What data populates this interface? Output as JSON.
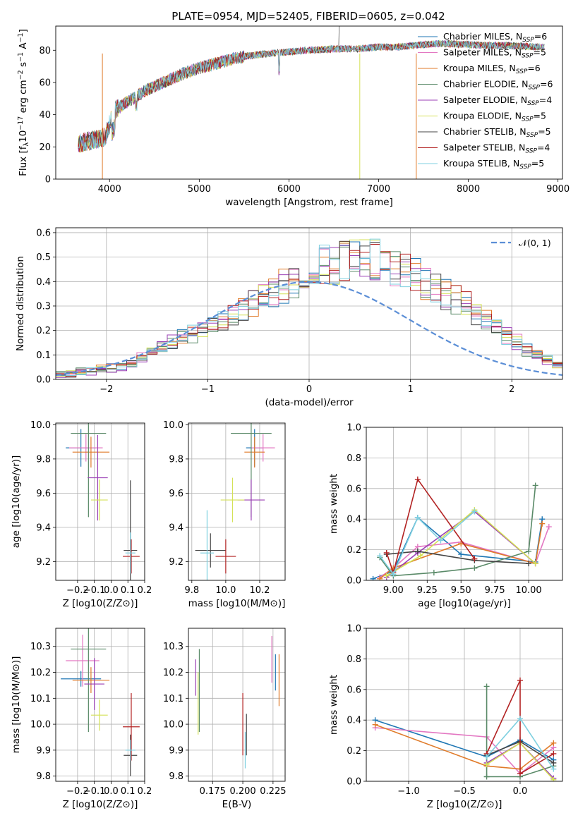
{
  "title": "PLATE=0954, MJD=52405, FIBERID=0605, z=0.042",
  "colors": {
    "chabrier_miles": "#1f77b4",
    "salpeter_miles": "#e377c2",
    "kroupa_miles": "#e07b2a",
    "chabrier_elodie": "#5a8a68",
    "salpeter_elodie": "#9b3fb5",
    "kroupa_elodie": "#d4e157",
    "chabrier_stelib": "#444444",
    "salpeter_stelib": "#b22222",
    "kroupa_stelib": "#7fd0e0",
    "normal": "#5b8ed6"
  },
  "chart_data": [
    {
      "type": "line",
      "panel": "spectrum",
      "title": "PLATE=0954, MJD=52405, FIBERID=0605, z=0.042",
      "xlabel": "wavelength [Angstrom, rest frame]",
      "ylabel": "Flux [f_λ 10^-17 erg cm^-2 s^-1 A^-1]",
      "xlim": [
        3400,
        9050
      ],
      "ylim": [
        0,
        95
      ],
      "xticks": [
        4000,
        5000,
        6000,
        7000,
        8000,
        9000
      ],
      "yticks": [
        0,
        20,
        40,
        60,
        80
      ],
      "legend_loc": "upper right",
      "legend": [
        "Chabrier MILES, N_SSP=6",
        "Salpeter MILES, N_SSP=5",
        "Kroupa MILES, N_SSP=6",
        "Chabrier ELODIE, N_SSP=6",
        "Salpeter ELODIE, N_SSP=4",
        "Kroupa ELODIE, N_SSP=5",
        "Chabrier STELIB, N_SSP=5",
        "Salpeter STELIB, N_SSP=4",
        "Kroupa STELIB, N_SSP=5"
      ],
      "continuum": {
        "x": [
          3650,
          3800,
          3950,
          4050,
          4200,
          4400,
          4600,
          4800,
          5000,
          5200,
          5400,
          5600,
          5800,
          6000,
          6200,
          6400,
          6600,
          6800,
          7000,
          7200,
          7400,
          7600,
          7800,
          8000,
          8200,
          8400,
          8600,
          8800
        ],
        "y": [
          22,
          24,
          26,
          42,
          48,
          55,
          60,
          65,
          69,
          72,
          75,
          77,
          78,
          79,
          80,
          80.5,
          81,
          81,
          82,
          82,
          83,
          84,
          84,
          83.5,
          83,
          83,
          82.5,
          82
        ]
      },
      "drops": [
        {
          "x": 3920,
          "model": "Kroupa MILES"
        },
        {
          "x": 6790,
          "model": "Kroupa ELODIE"
        },
        {
          "x": 7420,
          "model": "Kroupa MILES"
        }
      ],
      "spike": {
        "x": 6560,
        "y": 96
      }
    },
    {
      "type": "line",
      "panel": "residual_histogram",
      "xlabel": "(data-model)/error",
      "ylabel": "Normed distribution",
      "xlim": [
        -2.5,
        2.5
      ],
      "ylim": [
        0,
        0.62
      ],
      "xticks": [
        -2,
        -1,
        0,
        1,
        2
      ],
      "xtick_labels": [
        "−2",
        "−1",
        "0",
        "1",
        "2"
      ],
      "yticks": [
        0,
        0.1,
        0.2,
        0.3,
        0.4,
        0.5,
        0.6
      ],
      "ytick_labels": [
        "0.0",
        "0.1",
        "0.2",
        "0.3",
        "0.4",
        "0.5",
        "0.6"
      ],
      "legend_label": "𝒩(0, 1)",
      "legend_loc": "upper right",
      "bin_width": 0.1,
      "histogram_envelope": [
        0.02,
        0.025,
        0.03,
        0.035,
        0.04,
        0.05,
        0.06,
        0.07,
        0.09,
        0.11,
        0.13,
        0.15,
        0.17,
        0.19,
        0.21,
        0.23,
        0.25,
        0.27,
        0.29,
        0.31,
        0.33,
        0.36,
        0.38,
        0.4,
        0.42,
        0.44,
        0.46,
        0.47,
        0.48,
        0.49,
        0.5,
        0.49,
        0.48,
        0.46,
        0.44,
        0.42,
        0.39,
        0.37,
        0.35,
        0.33,
        0.3,
        0.27,
        0.24,
        0.21,
        0.18,
        0.15,
        0.12,
        0.1,
        0.08,
        0.06
      ]
    },
    {
      "type": "scatter",
      "panel": "age_vs_Z",
      "xlabel": "Z [log10(Z/Z⊙)]",
      "ylabel": "age [log10(age/yr)]",
      "xlim": [
        -0.33,
        0.2
      ],
      "ylim": [
        9.09,
        10.01
      ],
      "xticks": [
        -0.2,
        -0.1,
        0.0,
        0.1,
        0.2
      ],
      "xtick_labels": [
        "−0.2",
        "−0.1",
        "0.0",
        "0.1",
        "0.2"
      ],
      "yticks": [
        9.2,
        9.4,
        9.6,
        9.8,
        10.0
      ],
      "ytick_labels": [
        "9.2",
        "9.4",
        "9.6",
        "9.8",
        "10.0"
      ],
      "points": [
        {
          "model": "Chabrier MILES",
          "x": -0.18,
          "xerr": 0.09,
          "y": 9.865,
          "yerr": 0.11
        },
        {
          "model": "Salpeter MILES",
          "x": -0.15,
          "xerr": 0.1,
          "y": 9.865,
          "yerr": 0.08
        },
        {
          "model": "Kroupa MILES",
          "x": -0.12,
          "xerr": 0.11,
          "y": 9.84,
          "yerr": 0.09
        },
        {
          "model": "Chabrier ELODIE",
          "x": -0.135,
          "xerr": 0.105,
          "y": 9.95,
          "yerr": 0.49
        },
        {
          "model": "Salpeter ELODIE",
          "x": -0.08,
          "xerr": 0.06,
          "y": 9.69,
          "yerr": 0.25
        },
        {
          "model": "Kroupa ELODIE",
          "x": -0.07,
          "xerr": 0.05,
          "y": 9.56,
          "yerr": 0.12
        },
        {
          "model": "Chabrier STELIB",
          "x": 0.115,
          "xerr": 0.04,
          "y": 9.265,
          "yerr": 0.41
        },
        {
          "model": "Salpeter STELIB",
          "x": 0.12,
          "xerr": 0.05,
          "y": 9.23,
          "yerr": 0.1
        },
        {
          "model": "Kroupa STELIB",
          "x": 0.115,
          "xerr": 0.03,
          "y": 9.25,
          "yerr": 0.12
        }
      ]
    },
    {
      "type": "scatter",
      "panel": "age_vs_mass",
      "xlabel": "mass [log10(M/M⊙)]",
      "xlim": [
        9.78,
        10.35
      ],
      "ylim": [
        9.09,
        10.01
      ],
      "xticks": [
        9.8,
        10.0,
        10.2
      ],
      "xtick_labels": [
        "9.8",
        "10.0",
        "10.2"
      ],
      "yticks": [
        9.2,
        9.4,
        9.6,
        9.8,
        10.0
      ],
      "ytick_labels": [
        "9.2",
        "9.4",
        "9.6",
        "9.8",
        "10.0"
      ],
      "points": [
        {
          "model": "Chabrier MILES",
          "x": 10.17,
          "xerr": 0.05,
          "y": 9.865,
          "yerr": 0.11
        },
        {
          "model": "Salpeter MILES",
          "x": 10.22,
          "xerr": 0.07,
          "y": 9.865,
          "yerr": 0.08
        },
        {
          "model": "Kroupa MILES",
          "x": 10.17,
          "xerr": 0.06,
          "y": 9.84,
          "yerr": 0.09
        },
        {
          "model": "Chabrier ELODIE",
          "x": 10.15,
          "xerr": 0.12,
          "y": 9.95,
          "yerr": 0.49
        },
        {
          "model": "Salpeter ELODIE",
          "x": 10.15,
          "xerr": 0.08,
          "y": 9.56,
          "yerr": 0.12
        },
        {
          "model": "Kroupa ELODIE",
          "x": 10.04,
          "xerr": 0.07,
          "y": 9.56,
          "yerr": 0.13
        },
        {
          "model": "Chabrier STELIB",
          "x": 9.91,
          "xerr": 0.09,
          "y": 9.265,
          "yerr": 0.1
        },
        {
          "model": "Salpeter STELIB",
          "x": 10.0,
          "xerr": 0.06,
          "y": 9.23,
          "yerr": 0.1
        },
        {
          "model": "Kroupa STELIB",
          "x": 9.89,
          "xerr": 0.04,
          "y": 9.25,
          "yerr": 0.25
        }
      ]
    },
    {
      "type": "line",
      "panel": "weight_vs_age",
      "xlabel": "age [log10(age/yr)]",
      "ylabel": "mass weight",
      "xlim": [
        8.8,
        10.25
      ],
      "ylim": [
        0,
        1
      ],
      "xticks": [
        9.0,
        9.25,
        9.5,
        9.75,
        10.0
      ],
      "xtick_labels": [
        "9.00",
        "9.25",
        "9.50",
        "9.75",
        "10.00"
      ],
      "yticks": [
        0,
        0.2,
        0.4,
        0.6,
        0.8,
        1.0
      ],
      "ytick_labels": [
        "0.0",
        "0.2",
        "0.4",
        "0.6",
        "0.8",
        "1.0"
      ],
      "series": [
        {
          "model": "Chabrier MILES",
          "x": [
            8.85,
            9.0,
            9.18,
            9.5,
            10.05,
            10.1
          ],
          "y": [
            0.01,
            0.06,
            0.41,
            0.17,
            0.12,
            0.4
          ]
        },
        {
          "model": "Salpeter MILES",
          "x": [
            8.9,
            9.0,
            9.18,
            9.5,
            10.05,
            10.15
          ],
          "y": [
            0.02,
            0.08,
            0.22,
            0.25,
            0.11,
            0.35
          ]
        },
        {
          "model": "Kroupa MILES",
          "x": [
            8.9,
            9.0,
            9.5,
            10.05,
            10.1
          ],
          "y": [
            0.01,
            0.08,
            0.24,
            0.11,
            0.37
          ]
        },
        {
          "model": "Chabrier ELODIE",
          "x": [
            8.9,
            9.0,
            9.3,
            9.6,
            10.0,
            10.05
          ],
          "y": [
            0.15,
            0.03,
            0.05,
            0.08,
            0.19,
            0.62
          ]
        },
        {
          "model": "Salpeter ELODIE",
          "x": [
            8.95,
            9.18,
            9.6,
            10.05
          ],
          "y": [
            0.02,
            0.18,
            0.45,
            0.11
          ]
        },
        {
          "model": "Kroupa ELODIE",
          "x": [
            8.95,
            9.2,
            9.6,
            10.05
          ],
          "y": [
            0.03,
            0.16,
            0.46,
            0.11
          ]
        },
        {
          "model": "Chabrier STELIB",
          "x": [
            8.95,
            9.18,
            9.6,
            10.0
          ],
          "y": [
            0.17,
            0.19,
            0.13,
            0.11
          ]
        },
        {
          "model": "Salpeter STELIB",
          "x": [
            8.95,
            9.0,
            9.18,
            9.6
          ],
          "y": [
            0.18,
            0.05,
            0.66,
            0.14
          ]
        },
        {
          "model": "Kroupa STELIB",
          "x": [
            8.9,
            9.0,
            9.18,
            9.35,
            9.6
          ],
          "y": [
            0.16,
            0.04,
            0.41,
            0.26,
            0.45
          ]
        }
      ]
    },
    {
      "type": "scatter",
      "panel": "mass_vs_Z",
      "xlabel": "Z [log10(Z/Z⊙)]",
      "ylabel": "mass [log10(M/M⊙)]",
      "xlim": [
        -0.33,
        0.2
      ],
      "ylim": [
        9.78,
        10.37
      ],
      "xticks": [
        -0.2,
        -0.1,
        0.0,
        0.1,
        0.2
      ],
      "xtick_labels": [
        "−0.2",
        "−0.1",
        "0.0",
        "0.1",
        "0.2"
      ],
      "yticks": [
        9.8,
        9.9,
        10.0,
        10.1,
        10.2,
        10.3
      ],
      "ytick_labels": [
        "9.8",
        "9.9",
        "10.0",
        "10.1",
        "10.2",
        "10.3"
      ],
      "points": [
        {
          "model": "Chabrier MILES",
          "x": -0.18,
          "xerr": 0.12,
          "y": 10.175,
          "yerr": 0.03
        },
        {
          "model": "Salpeter MILES",
          "x": -0.17,
          "xerr": 0.1,
          "y": 10.245,
          "yerr": 0.1
        },
        {
          "model": "Kroupa MILES",
          "x": -0.12,
          "xerr": 0.11,
          "y": 10.17,
          "yerr": 0.05
        },
        {
          "model": "Chabrier ELODIE",
          "x": -0.135,
          "xerr": 0.105,
          "y": 10.29,
          "yerr": 0.32
        },
        {
          "model": "Salpeter ELODIE",
          "x": -0.1,
          "xerr": 0.06,
          "y": 10.155,
          "yerr": 0.1
        },
        {
          "model": "Kroupa ELODIE",
          "x": -0.07,
          "xerr": 0.05,
          "y": 10.035,
          "yerr": 0.06
        },
        {
          "model": "Chabrier STELIB",
          "x": 0.115,
          "xerr": 0.04,
          "y": 9.88,
          "yerr": 0.08
        },
        {
          "model": "Salpeter STELIB",
          "x": 0.12,
          "xerr": 0.05,
          "y": 9.99,
          "yerr": 0.13
        },
        {
          "model": "Kroupa STELIB",
          "x": 0.115,
          "xerr": 0.03,
          "y": 9.9,
          "yerr": 0.04
        }
      ]
    },
    {
      "type": "scatter",
      "panel": "mass_vs_EBV",
      "xlabel": "E(B-V)",
      "xlim": [
        0.155,
        0.235
      ],
      "ylim": [
        9.78,
        10.37
      ],
      "xticks": [
        0.175,
        0.2,
        0.225
      ],
      "xtick_labels": [
        "0.175",
        "0.200",
        "0.225"
      ],
      "yticks": [
        9.8,
        9.9,
        10.0,
        10.1,
        10.2,
        10.3
      ],
      "ytick_labels": [
        "9.8",
        "9.9",
        "10.0",
        "10.1",
        "10.2",
        "10.3"
      ],
      "points": [
        {
          "model": "Chabrier MILES",
          "x": 0.227,
          "y": 10.2,
          "yerr": 0.07
        },
        {
          "model": "Salpeter MILES",
          "x": 0.224,
          "y": 10.25,
          "yerr": 0.09
        },
        {
          "model": "Kroupa MILES",
          "x": 0.23,
          "y": 10.17,
          "yerr": 0.1
        },
        {
          "model": "Chabrier ELODIE",
          "x": 0.164,
          "y": 10.13,
          "yerr": 0.16
        },
        {
          "model": "Salpeter ELODIE",
          "x": 0.161,
          "y": 10.18,
          "yerr": 0.07
        },
        {
          "model": "Kroupa ELODIE",
          "x": 0.163,
          "y": 10.08,
          "yerr": 0.12
        },
        {
          "model": "Chabrier STELIB",
          "x": 0.203,
          "y": 9.96,
          "yerr": 0.08
        },
        {
          "model": "Salpeter STELIB",
          "x": 0.2,
          "y": 10.0,
          "yerr": 0.12
        },
        {
          "model": "Kroupa STELIB",
          "x": 0.202,
          "y": 9.9,
          "yerr": 0.07
        }
      ]
    },
    {
      "type": "line",
      "panel": "weight_vs_Z",
      "xlabel": "Z [log10(Z/Z⊙)]",
      "ylabel": "mass weight",
      "xlim": [
        -1.38,
        0.38
      ],
      "ylim": [
        0,
        1
      ],
      "xticks": [
        -1.0,
        -0.5,
        0.0
      ],
      "xtick_labels": [
        "−1.0",
        "−0.5",
        "0.0"
      ],
      "yticks": [
        0,
        0.2,
        0.4,
        0.6,
        0.8,
        1.0
      ],
      "ytick_labels": [
        "0.0",
        "0.2",
        "0.4",
        "0.6",
        "0.8",
        "1.0"
      ],
      "series": [
        {
          "model": "Chabrier MILES",
          "x": [
            -1.3,
            -0.3,
            0.0,
            0.3
          ],
          "y": [
            0.4,
            0.16,
            0.27,
            0.14
          ]
        },
        {
          "model": "Salpeter MILES",
          "x": [
            -1.3,
            -0.3,
            0.0,
            0.3
          ],
          "y": [
            0.35,
            0.29,
            0.05,
            0.22
          ]
        },
        {
          "model": "Kroupa MILES",
          "x": [
            -1.3,
            -0.3,
            0.0,
            0.3
          ],
          "y": [
            0.37,
            0.1,
            0.08,
            0.25
          ]
        },
        {
          "model": "Chabrier ELODIE",
          "x": [
            -0.3,
            -0.3,
            0.0,
            0.3
          ],
          "y": [
            0.62,
            0.03,
            0.03,
            0.1
          ]
        },
        {
          "model": "Salpeter ELODIE",
          "x": [
            -0.3,
            0.0,
            0.3
          ],
          "y": [
            0.12,
            0.25,
            0.02
          ]
        },
        {
          "model": "Kroupa ELODIE",
          "x": [
            -0.3,
            0.0,
            0.3
          ],
          "y": [
            0.11,
            0.25,
            0.01
          ]
        },
        {
          "model": "Chabrier STELIB",
          "x": [
            -0.3,
            0.0,
            0.3
          ],
          "y": [
            0.17,
            0.26,
            0.12
          ]
        },
        {
          "model": "Salpeter STELIB",
          "x": [
            -0.3,
            0.0,
            0.0,
            0.3
          ],
          "y": [
            0.18,
            0.66,
            0.05,
            0.18
          ]
        },
        {
          "model": "Kroupa STELIB",
          "x": [
            -0.3,
            0.0,
            0.3
          ],
          "y": [
            0.16,
            0.41,
            0.08
          ]
        }
      ]
    }
  ]
}
